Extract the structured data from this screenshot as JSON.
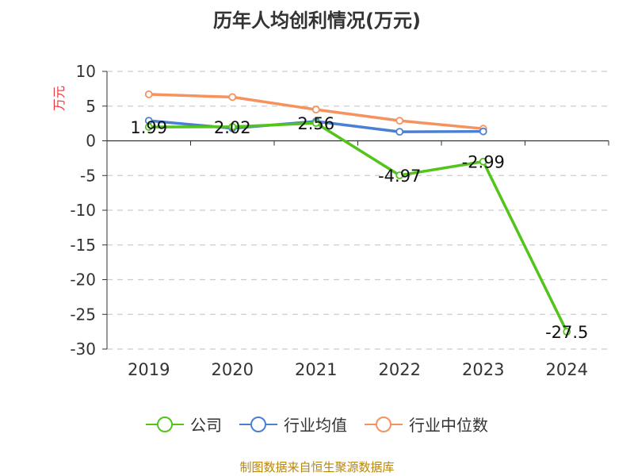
{
  "title": "历年人均创利情况(万元)",
  "source": "制图数据来自恒生聚源数据库",
  "colors": {
    "axis": "#333333",
    "grid": "#cccccc",
    "ylabel": "#e8383d",
    "text": "#333333",
    "source": "#b8860b"
  },
  "chart_data": {
    "type": "line",
    "ylabel": "万元",
    "xlabel": "",
    "ylim": [
      -30,
      10
    ],
    "yticks": [
      10,
      5,
      0,
      -5,
      -10,
      -15,
      -20,
      -25,
      -30
    ],
    "categories": [
      "2019",
      "2020",
      "2021",
      "2022",
      "2023",
      "2024"
    ],
    "grid": true,
    "legend_position": "bottom",
    "series": [
      {
        "name": "公司",
        "color": "#52c41a",
        "values": [
          1.99,
          2.02,
          2.56,
          -4.97,
          -2.99,
          -27.5
        ],
        "labels": [
          "1.99",
          "2.02",
          "2.56",
          "-4.97",
          "-2.99",
          "-27.5"
        ]
      },
      {
        "name": "行业均值",
        "color": "#4a7fd6",
        "values": [
          2.9,
          1.8,
          2.8,
          1.3,
          1.35,
          null
        ]
      },
      {
        "name": "行业中位数",
        "color": "#f5925e",
        "values": [
          6.7,
          6.3,
          4.5,
          2.9,
          1.75,
          null
        ]
      }
    ]
  }
}
